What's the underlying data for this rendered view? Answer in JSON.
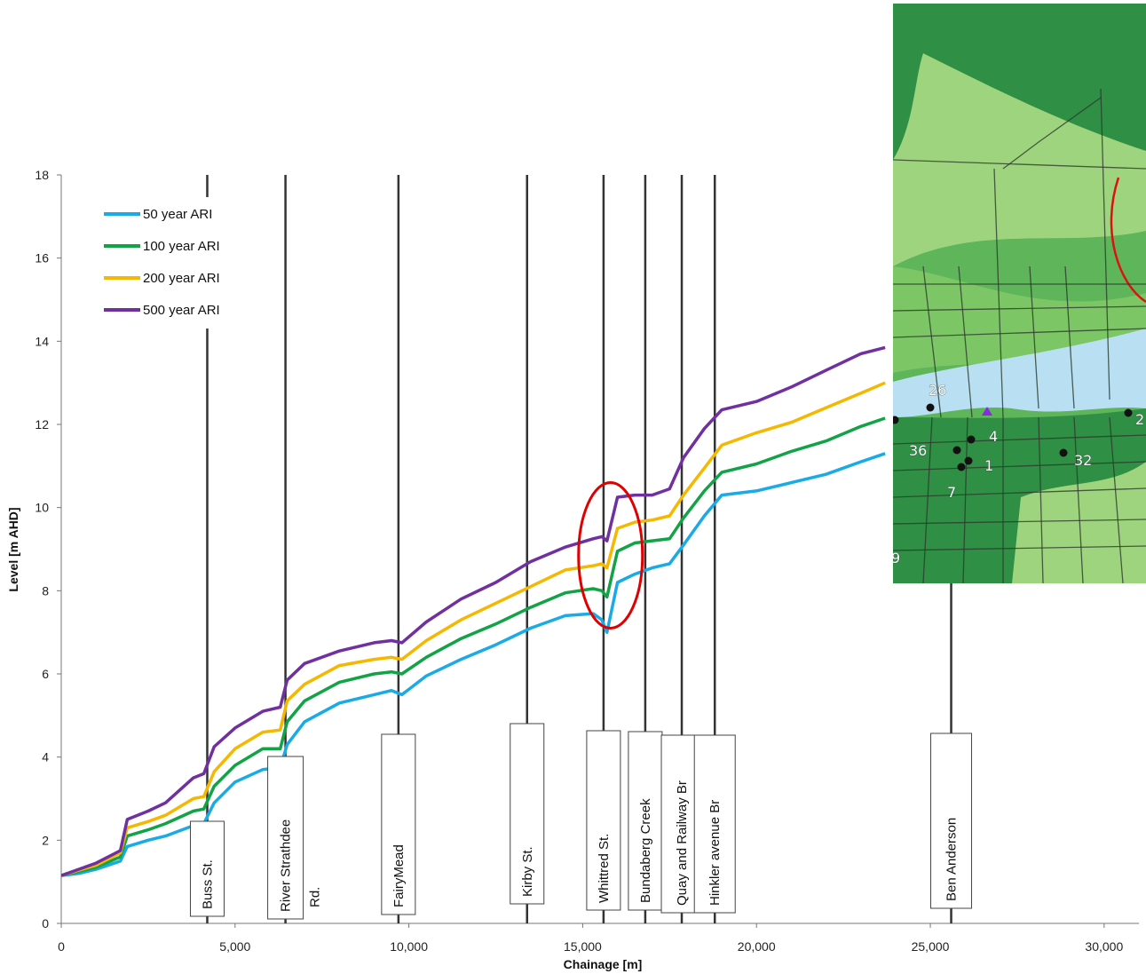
{
  "chart_data": {
    "type": "line",
    "title": "",
    "xlabel": "Chainage [m]",
    "ylabel": "Level [m AHD]",
    "xlim": [
      0,
      31000
    ],
    "ylim": [
      0,
      18
    ],
    "xticks": [
      0,
      5000,
      10000,
      15000,
      20000,
      25000,
      30000
    ],
    "xtick_labels": [
      "0",
      "5,000",
      "10,000",
      "15,000",
      "20,000",
      "25,000",
      "30,000"
    ],
    "yticks": [
      0,
      2,
      4,
      6,
      8,
      10,
      12,
      14,
      16,
      18
    ],
    "ytick_labels": [
      "0",
      "2",
      "4",
      "6",
      "8",
      "10",
      "12",
      "14",
      "16",
      "18"
    ],
    "legend_position": "top-left",
    "x": [
      0,
      500,
      1000,
      1700,
      1900,
      2500,
      3000,
      3800,
      4100,
      4400,
      5000,
      5800,
      6300,
      6500,
      7000,
      8000,
      9000,
      9500,
      9800,
      10500,
      11500,
      12500,
      13500,
      14500,
      15300,
      15550,
      15700,
      16000,
      16500,
      17000,
      17500,
      17900,
      18500,
      19000,
      20000,
      21000,
      22000,
      23000,
      23700
    ],
    "series": [
      {
        "name": "50 year ARI",
        "color": "#1aabe6",
        "values": [
          1.15,
          1.2,
          1.3,
          1.5,
          1.85,
          2.0,
          2.1,
          2.35,
          2.4,
          2.9,
          3.4,
          3.7,
          3.75,
          4.3,
          4.85,
          5.3,
          5.5,
          5.6,
          5.5,
          5.95,
          6.35,
          6.7,
          7.1,
          7.4,
          7.45,
          7.3,
          7.0,
          8.2,
          8.4,
          8.55,
          8.65,
          9.1,
          9.8,
          10.3,
          10.4,
          10.6,
          10.8,
          11.1,
          11.3
        ]
      },
      {
        "name": "100 year ARI",
        "color": "#13a347",
        "values": [
          1.15,
          1.25,
          1.35,
          1.6,
          2.1,
          2.25,
          2.4,
          2.7,
          2.75,
          3.3,
          3.8,
          4.2,
          4.2,
          4.85,
          5.35,
          5.8,
          6.0,
          6.05,
          6.0,
          6.4,
          6.85,
          7.2,
          7.6,
          7.95,
          8.05,
          8.0,
          7.85,
          8.95,
          9.15,
          9.2,
          9.25,
          9.75,
          10.4,
          10.85,
          11.05,
          11.35,
          11.6,
          11.95,
          12.15
        ]
      },
      {
        "name": "200 year ARI",
        "color": "#f5b800",
        "values": [
          1.15,
          1.28,
          1.4,
          1.7,
          2.3,
          2.45,
          2.6,
          3.0,
          3.05,
          3.65,
          4.2,
          4.6,
          4.65,
          5.35,
          5.75,
          6.2,
          6.35,
          6.4,
          6.35,
          6.8,
          7.3,
          7.7,
          8.1,
          8.5,
          8.6,
          8.65,
          8.55,
          9.5,
          9.65,
          9.7,
          9.8,
          10.3,
          10.95,
          11.5,
          11.8,
          12.05,
          12.4,
          12.75,
          13.0
        ]
      },
      {
        "name": "500 year ARI",
        "color": "#7030a0",
        "values": [
          1.15,
          1.3,
          1.45,
          1.75,
          2.5,
          2.7,
          2.9,
          3.5,
          3.6,
          4.25,
          4.7,
          5.1,
          5.2,
          5.85,
          6.25,
          6.55,
          6.75,
          6.8,
          6.75,
          7.25,
          7.8,
          8.2,
          8.7,
          9.05,
          9.25,
          9.3,
          9.2,
          10.25,
          10.3,
          10.3,
          10.45,
          11.2,
          11.9,
          12.35,
          12.55,
          12.9,
          13.3,
          13.7,
          13.85
        ]
      }
    ],
    "structures": [
      {
        "label": "Buss  St.",
        "x": 4200
      },
      {
        "label": "River Strathdee",
        "label2": "Rd.",
        "x": 6450
      },
      {
        "label": "FairyMead",
        "x": 9700
      },
      {
        "label": "Kirby St.",
        "x": 13400
      },
      {
        "label": "Whittred St.",
        "x": 15600
      },
      {
        "label": "Bundaberg Creek",
        "x": 16800
      },
      {
        "label": "Quay and Railway Br",
        "x": 17850
      },
      {
        "label": "Hinkler avenue Br",
        "x": 18800
      },
      {
        "label": "Ben Anderson",
        "x": 25600
      }
    ],
    "highlight_ellipse": {
      "center_x": 15800,
      "center_y": 8.85,
      "color": "#e00000"
    }
  },
  "map_inset": {
    "labels": [
      "26",
      "4",
      "36",
      "1",
      "7",
      "32",
      "9",
      "2"
    ],
    "colors": {
      "river": "#b9e0f2",
      "land_dark": "#2f8f45",
      "land_mid": "#5eb55a",
      "land_light": "#9fd47f",
      "roads": "#2c3b2c"
    }
  }
}
